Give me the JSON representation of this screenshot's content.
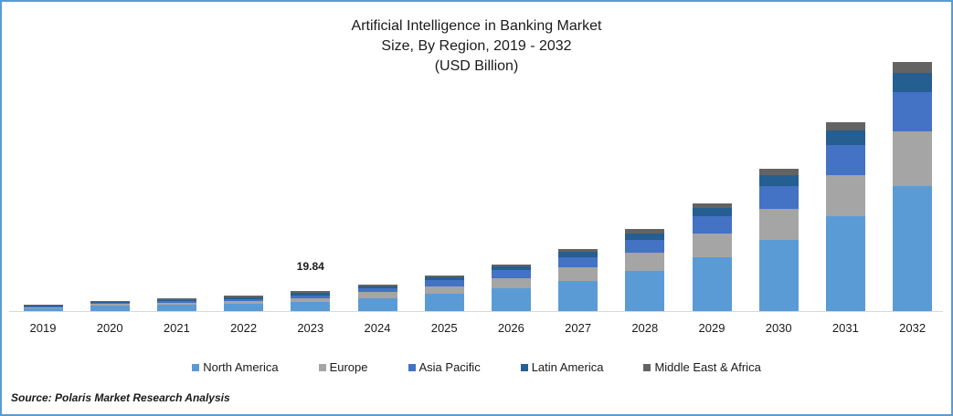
{
  "title": {
    "line1": "Artificial Intelligence in Banking Market",
    "line2": "Size, By Region, 2019 - 2032",
    "line3": "(USD Billion)"
  },
  "annotation": {
    "year": "2023",
    "value": "19.84"
  },
  "legend": [
    {
      "label": "North America",
      "color": "#5b9bd5"
    },
    {
      "label": "Europe",
      "color": "#a5a5a5"
    },
    {
      "label": "Asia Pacific",
      "color": "#4472c4"
    },
    {
      "label": "Latin America",
      "color": "#255e91"
    },
    {
      "label": "Middle East & Africa",
      "color": "#636363"
    }
  ],
  "source": "Source: Polaris  Market Research Analysis",
  "chart_data": {
    "type": "bar",
    "stacked": true,
    "title": "Artificial Intelligence in Banking Market Size, By Region, 2019 - 2032 (USD Billion)",
    "xlabel": "",
    "ylabel": "USD Billion",
    "grid": false,
    "legend_position": "bottom",
    "categories": [
      "2019",
      "2020",
      "2021",
      "2022",
      "2023",
      "2024",
      "2025",
      "2026",
      "2027",
      "2028",
      "2029",
      "2030",
      "2031",
      "2032"
    ],
    "series": [
      {
        "name": "North America",
        "color": "#5b9bd5",
        "values": [
          2.7,
          5.4,
          6.3,
          7.2,
          9.0,
          12.6,
          17.1,
          22.5,
          29.8,
          39.7,
          53.2,
          70.4,
          93.8,
          123.6
        ]
      },
      {
        "name": "Europe",
        "color": "#a5a5a5",
        "values": [
          0.9,
          1.8,
          1.8,
          2.7,
          3.6,
          6.3,
          7.2,
          9.9,
          13.5,
          18.0,
          23.5,
          30.7,
          40.6,
          54.1
        ]
      },
      {
        "name": "Asia Pacific",
        "color": "#4472c4",
        "values": [
          0.9,
          0.9,
          1.8,
          1.8,
          2.7,
          3.6,
          6.3,
          8.1,
          9.9,
          12.6,
          17.1,
          22.5,
          29.8,
          38.8
        ]
      },
      {
        "name": "Latin America",
        "color": "#255e91",
        "values": [
          0.9,
          0.9,
          0.9,
          1.8,
          2.7,
          1.8,
          2.7,
          3.6,
          5.4,
          6.3,
          8.1,
          10.8,
          14.4,
          18.9
        ]
      },
      {
        "name": "Middle East & Africa",
        "color": "#636363",
        "values": [
          0.9,
          0.9,
          1.8,
          1.8,
          1.8,
          1.8,
          1.8,
          1.8,
          2.7,
          4.5,
          4.5,
          6.3,
          8.1,
          10.8
        ]
      }
    ],
    "totals": [
      6.3,
      9.9,
      12.6,
      15.3,
      19.84,
      26.1,
      35.1,
      45.9,
      61.3,
      81.1,
      106.4,
      140.7,
      186.7,
      246.2
    ],
    "annotations": [
      {
        "category": "2023",
        "text": "19.84"
      }
    ]
  }
}
